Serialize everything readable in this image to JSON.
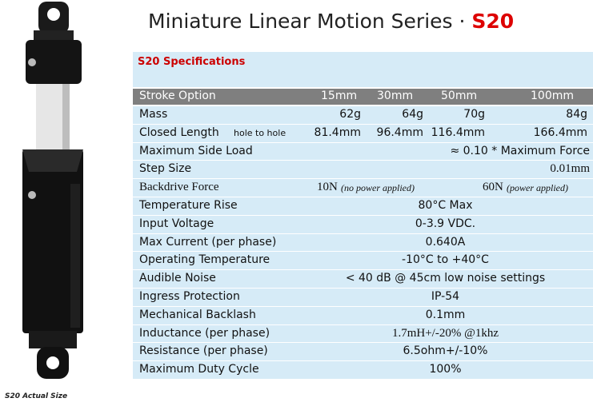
{
  "header": {
    "title": "Miniature Linear Motion Series · ",
    "model": "S20"
  },
  "image": {
    "caption": "S20 Actual Size"
  },
  "table": {
    "heading": "S20 Specifications",
    "columns": [
      "Stroke Option",
      "15mm",
      "30mm",
      "50mm",
      "100mm"
    ],
    "rows": [
      {
        "label": "Mass",
        "cells": [
          "62g",
          "64g",
          "70g",
          "84g"
        ]
      },
      {
        "label": "Closed Length",
        "note": "hole to hole",
        "cells": [
          "81.4mm",
          "96.4mm",
          "116.4mm",
          "166.4mm"
        ]
      },
      {
        "label": "Maximum Side Load",
        "cells": [
          "≈ 0.10 * Maximum Force"
        ]
      },
      {
        "label": "Step Size",
        "cells": [
          "0.01mm"
        ]
      },
      {
        "label": "Backdrive Force",
        "cells": [
          "10N",
          "(no power applied)",
          "60N",
          "(power applied)"
        ]
      },
      {
        "label": "Temperature Rise",
        "cells": [
          "80°C Max"
        ]
      },
      {
        "label": "Input Voltage",
        "cells": [
          "0-3.9 VDC."
        ]
      },
      {
        "label": "Max Current (per phase)",
        "cells": [
          "0.640A"
        ]
      },
      {
        "label": "Operating Temperature",
        "cells": [
          "-10°C to +40°C"
        ]
      },
      {
        "label": "Audible Noise",
        "cells": [
          "< 40 dB @ 45cm low noise settings"
        ]
      },
      {
        "label": "Ingress Protection",
        "cells": [
          "IP-54"
        ]
      },
      {
        "label": "Mechanical Backlash",
        "cells": [
          "0.1mm"
        ]
      },
      {
        "label": "Inductance (per phase)",
        "cells": [
          "1.7mH+/-20% @1khz"
        ]
      },
      {
        "label": "Resistance (per phase)",
        "cells": [
          "6.5ohm+/-10%"
        ]
      },
      {
        "label": "Maximum Duty Cycle",
        "cells": [
          "100%"
        ]
      }
    ]
  }
}
